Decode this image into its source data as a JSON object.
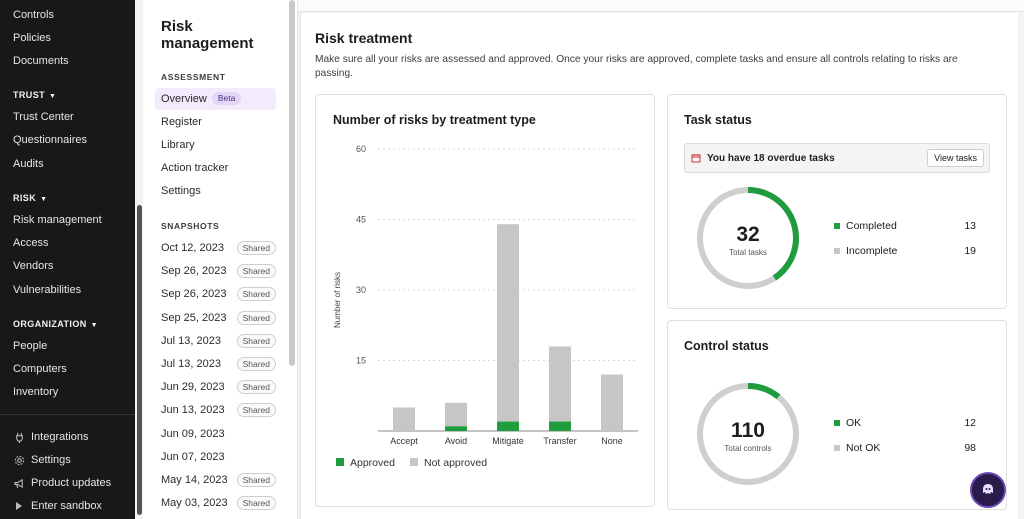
{
  "leftnav": {
    "items_top": [
      "Controls",
      "Policies",
      "Documents"
    ],
    "trust_label": "TRUST",
    "trust_items": [
      "Trust Center",
      "Questionnaires",
      "Audits"
    ],
    "risk_label": "RISK",
    "risk_items": [
      "Risk management",
      "Access",
      "Vendors",
      "Vulnerabilities"
    ],
    "org_label": "ORGANIZATION",
    "org_items": [
      "People",
      "Computers",
      "Inventory"
    ],
    "bottom": [
      {
        "label": "Integrations",
        "icon": "plug-icon"
      },
      {
        "label": "Settings",
        "icon": "gear-icon"
      },
      {
        "label": "Product updates",
        "icon": "megaphone-icon"
      },
      {
        "label": "Enter sandbox",
        "icon": "play-icon"
      }
    ]
  },
  "subnav": {
    "title": "Risk management",
    "assessment_label": "ASSESSMENT",
    "overview": "Overview",
    "beta": "Beta",
    "links": [
      "Register",
      "Library",
      "Action tracker",
      "Settings"
    ],
    "snapshots_label": "SNAPSHOTS",
    "snapshots": [
      {
        "date": "Oct 12, 2023",
        "shared": "Shared"
      },
      {
        "date": "Sep 26, 2023",
        "shared": "Shared"
      },
      {
        "date": "Sep 26, 2023",
        "shared": "Shared"
      },
      {
        "date": "Sep 25, 2023",
        "shared": "Shared"
      },
      {
        "date": "Jul 13, 2023",
        "shared": "Shared"
      },
      {
        "date": "Jul 13, 2023",
        "shared": "Shared"
      },
      {
        "date": "Jun 29, 2023",
        "shared": "Shared"
      },
      {
        "date": "Jun 13, 2023",
        "shared": "Shared"
      },
      {
        "date": "Jun 09, 2023",
        "shared": ""
      },
      {
        "date": "Jun 07, 2023",
        "shared": ""
      },
      {
        "date": "May 14, 2023",
        "shared": "Shared"
      },
      {
        "date": "May 03, 2023",
        "shared": "Shared"
      }
    ]
  },
  "main": {
    "title": "Risk treatment",
    "description": "Make sure all your risks are assessed and approved. Once your risks are approved, complete tasks and ensure all controls relating to risks are passing.",
    "chart_card_title": "Number of risks by treatment type",
    "task": {
      "title": "Task status",
      "alert": "You have 18 overdue tasks",
      "button": "View tasks",
      "total": "32",
      "total_label": "Total tasks",
      "completed_label": "Completed",
      "completed": "13",
      "incomplete_label": "Incomplete",
      "incomplete": "19"
    },
    "control": {
      "title": "Control status",
      "total": "110",
      "total_label": "Total controls",
      "ok_label": "OK",
      "ok": "12",
      "notok_label": "Not OK",
      "notok": "98"
    }
  },
  "colors": {
    "approved": "#1e9c3e",
    "not_approved": "#c6c6c4",
    "accent": "#6b4bb8"
  },
  "chart_data": {
    "type": "bar",
    "title": "Number of risks by treatment type",
    "xlabel": "",
    "ylabel": "Number of risks",
    "categories": [
      "Accept",
      "Avoid",
      "Mitigate",
      "Transfer",
      "None"
    ],
    "series": [
      {
        "name": "Approved",
        "values": [
          0,
          1,
          2,
          2,
          0
        ]
      },
      {
        "name": "Not approved",
        "values": [
          5,
          5,
          42,
          16,
          12
        ]
      }
    ],
    "stacked": true,
    "ylim": [
      0,
      60
    ],
    "yticks": [
      15,
      30,
      45,
      60
    ],
    "legend": "bottom-left",
    "grid": true
  }
}
